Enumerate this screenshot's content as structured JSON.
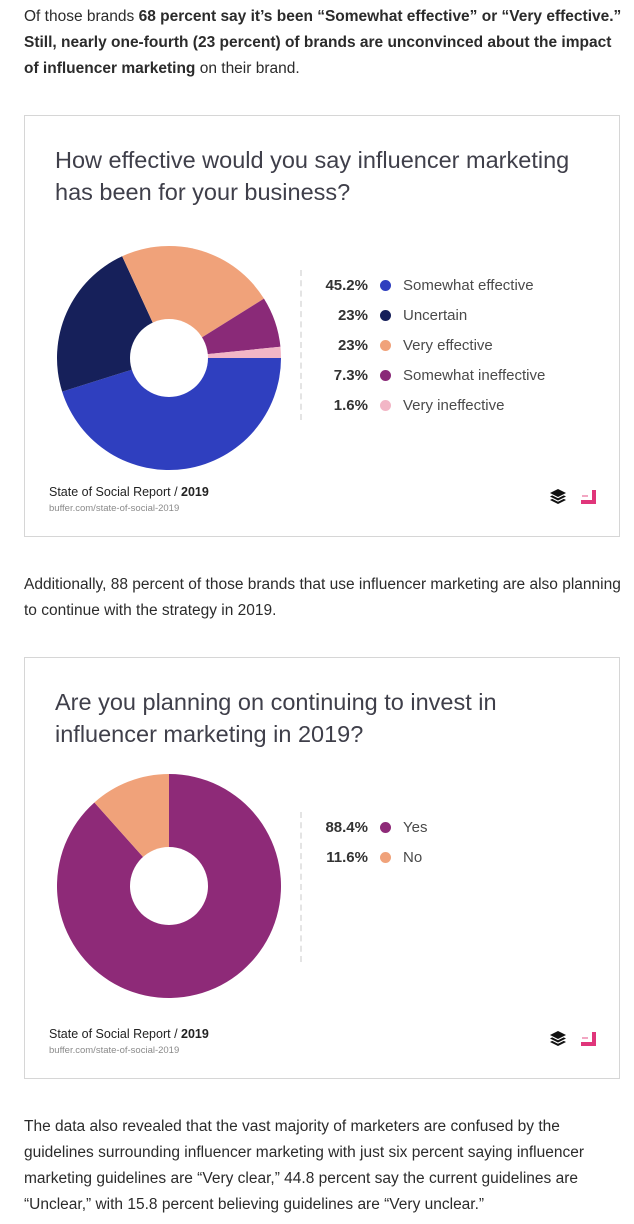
{
  "intro": {
    "prefix": "Of those brands ",
    "bold1": "68 percent say it’s been “Somewhat effective” or “Very effective.” Still, nearly one-fourth (23 percent) of brands are unconvinced about the impact of influencer marketing",
    "suffix": " on their brand."
  },
  "card1": {
    "title": "How effective would you say influencer marketing has been for your business?",
    "legend": [
      {
        "pct": "45.2%",
        "label": "Somewhat effective",
        "color": "#2f3fbf"
      },
      {
        "pct": "23%",
        "label": "Uncertain",
        "color": "#16205a"
      },
      {
        "pct": "23%",
        "label": "Very effective",
        "color": "#f0a27a"
      },
      {
        "pct": "7.3%",
        "label": "Somewhat ineffective",
        "color": "#8a2a78"
      },
      {
        "pct": "1.6%",
        "label": "Very ineffective",
        "color": "#f2b6c6"
      }
    ],
    "source_prefix": "State of Social Report / ",
    "source_year": "2019",
    "source_url": "buffer.com/state-of-social-2019"
  },
  "middle": {
    "text": "Additionally, 88 percent of those brands that use influencer marketing are also planning to continue with the strategy in 2019."
  },
  "card2": {
    "title": "Are you planning on continuing to invest in influencer marketing in 2019?",
    "legend": [
      {
        "pct": "88.4%",
        "label": "Yes",
        "color": "#8e2a78"
      },
      {
        "pct": "11.6%",
        "label": "No",
        "color": "#f0a27a"
      }
    ],
    "source_prefix": "State of Social Report / ",
    "source_year": "2019",
    "source_url": "buffer.com/state-of-social-2019"
  },
  "outro": {
    "text": "The data also revealed that the vast majority of marketers are confused by the guidelines surrounding influencer marketing with just six percent saying influencer marketing guidelines are “Very clear,” 44.8 percent say the current guidelines are “Unclear,” with 15.8 percent believing guidelines are “Very unclear.”"
  },
  "chart_data": [
    {
      "type": "pie",
      "title": "How effective would you say influencer marketing has been for your business?",
      "categories": [
        "Somewhat effective",
        "Uncertain",
        "Very effective",
        "Somewhat ineffective",
        "Very ineffective"
      ],
      "values": [
        45.2,
        23,
        23,
        7.3,
        1.6
      ],
      "colors": [
        "#2f3fbf",
        "#16205a",
        "#f0a27a",
        "#8a2a78",
        "#f2b6c6"
      ],
      "donut": true
    },
    {
      "type": "pie",
      "title": "Are you planning on continuing to invest in influencer marketing in 2019?",
      "categories": [
        "Yes",
        "No"
      ],
      "values": [
        88.4,
        11.6
      ],
      "colors": [
        "#8e2a78",
        "#f0a27a"
      ],
      "donut": true
    }
  ]
}
